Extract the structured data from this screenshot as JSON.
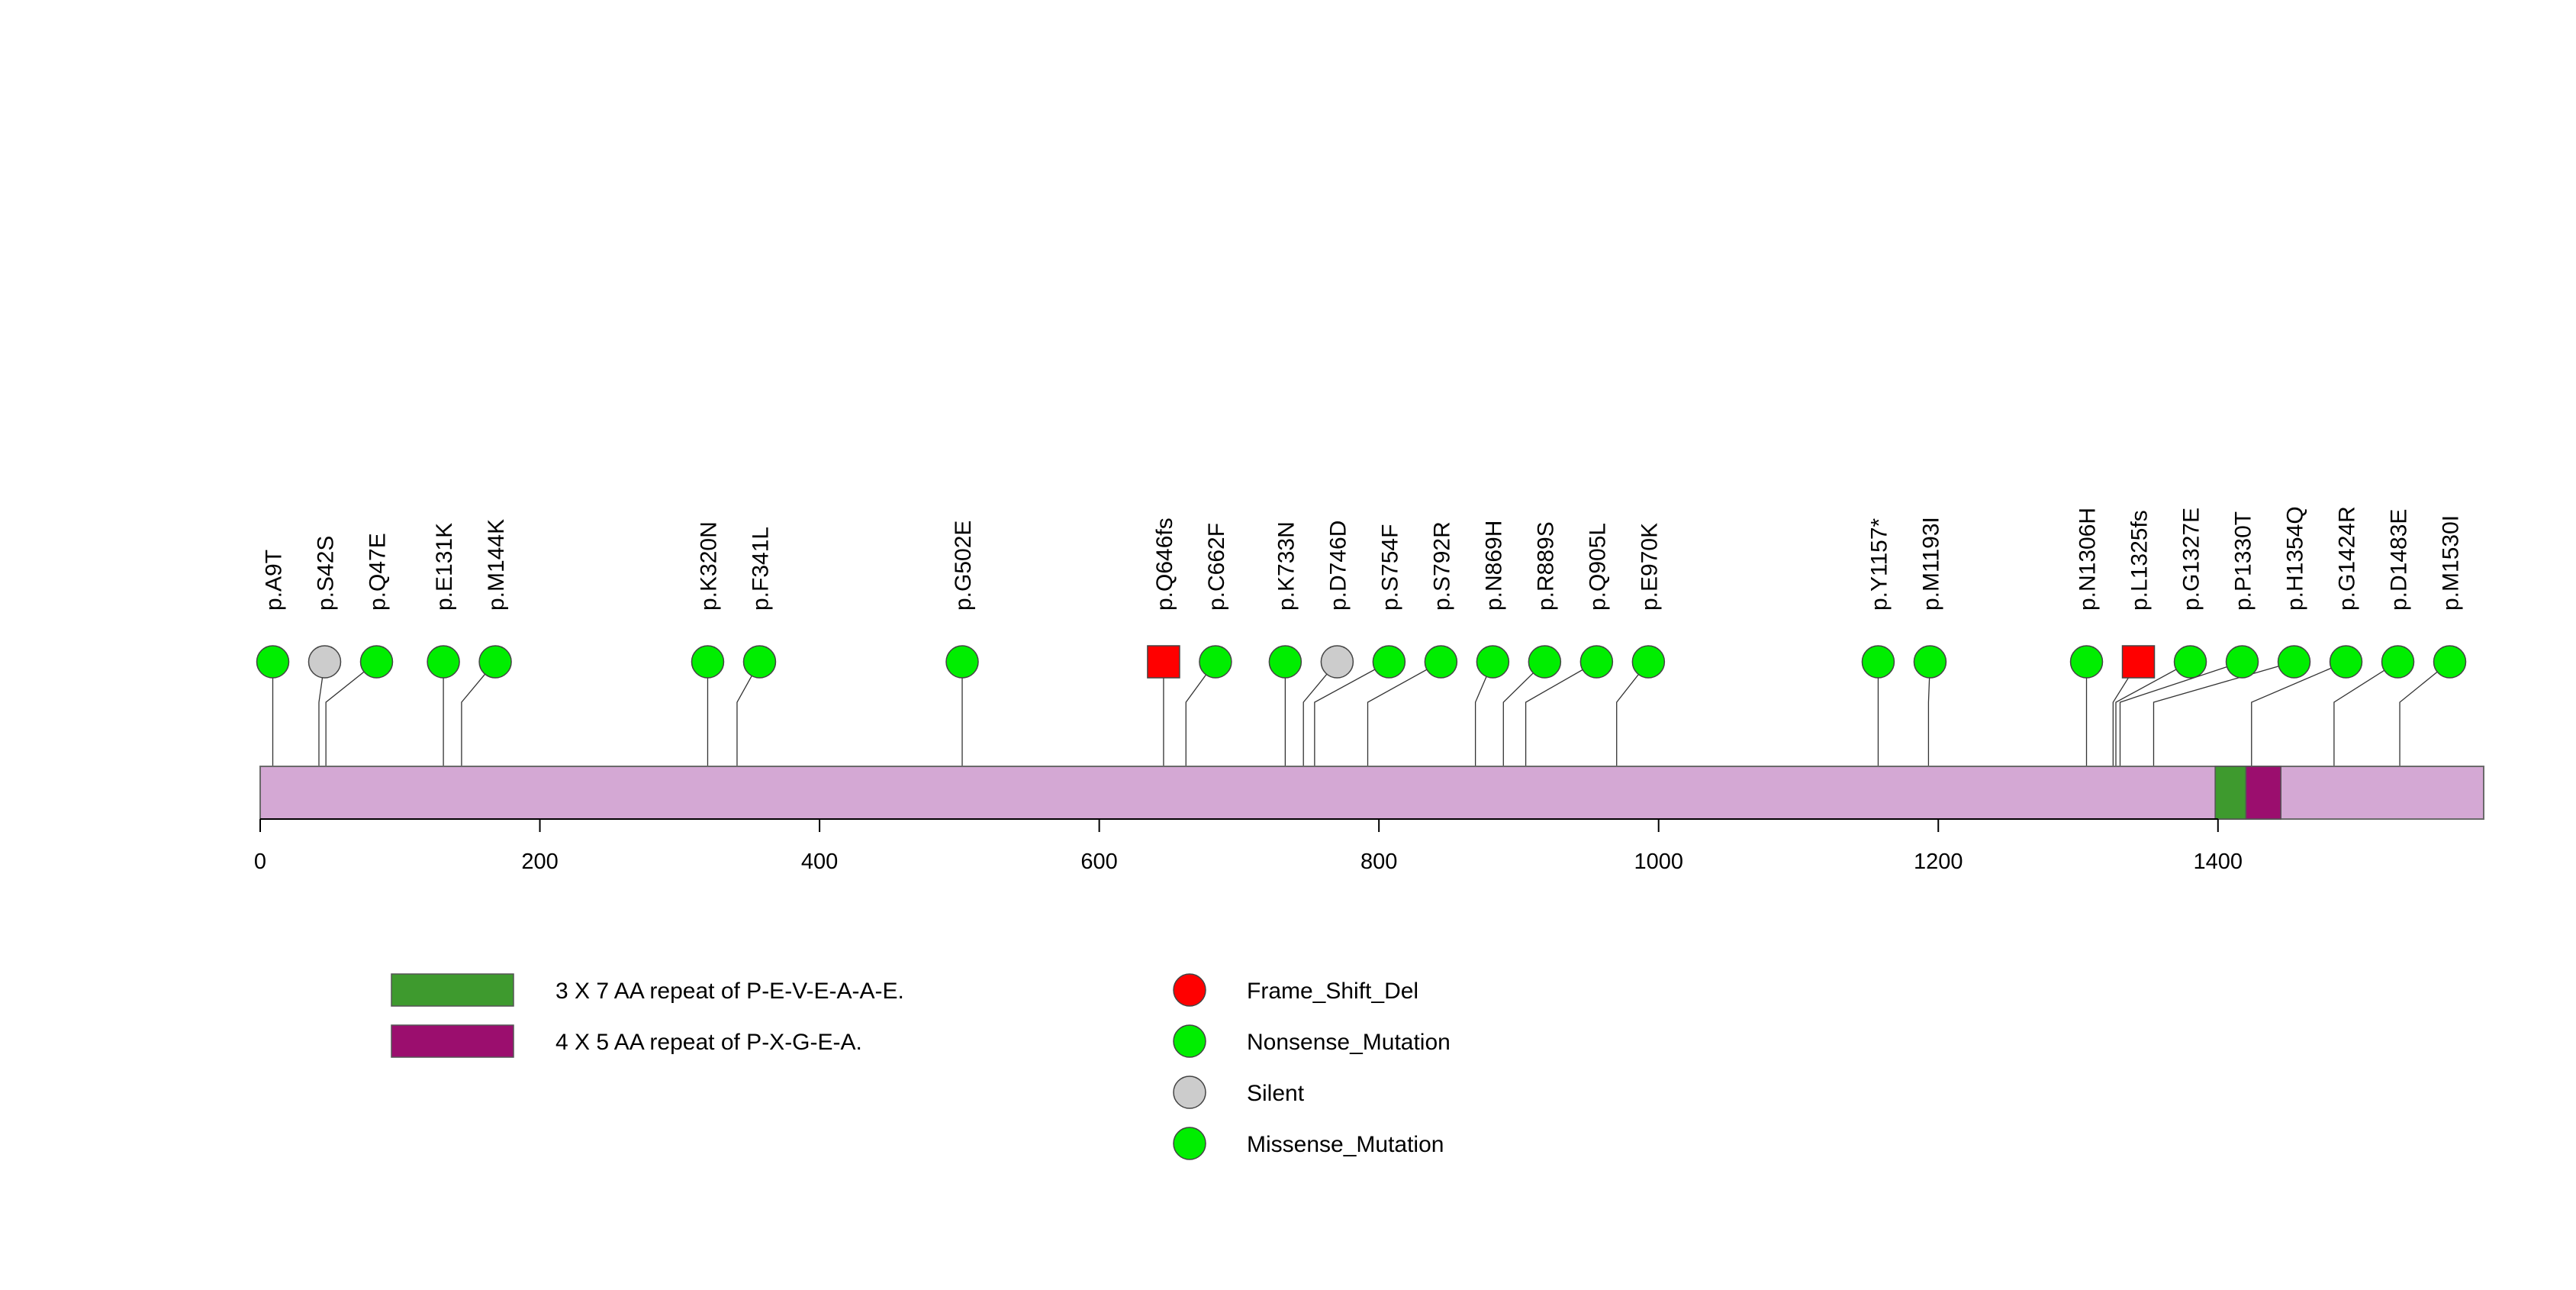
{
  "chart_data": {
    "type": "lollipop",
    "title": "",
    "xlabel": "",
    "ylabel": "",
    "protein_length": 1590,
    "xlim": [
      0,
      1590
    ],
    "x_ticks": [
      0,
      200,
      400,
      600,
      800,
      1000,
      1200,
      1400
    ],
    "x_tick_labels": [
      "0",
      "200",
      "400",
      "600",
      "800",
      "1000",
      "1200",
      "1400"
    ],
    "domains": [
      {
        "name": "3 X 7 AA repeat of P-E-V-E-A-A-E.",
        "start": 1398,
        "end": 1420,
        "color": "#3e9a2e"
      },
      {
        "name": "4 X 5 AA repeat of P-X-G-E-A.",
        "start": 1420,
        "end": 1445,
        "color": "#9b0e6e"
      }
    ],
    "mutation_types": [
      {
        "name": "Frame_Shift_Del",
        "color": "#ff0000"
      },
      {
        "name": "Nonsense_Mutation",
        "color": "#00ee00"
      },
      {
        "name": "Silent",
        "color": "#cccccc"
      },
      {
        "name": "Missense_Mutation",
        "color": "#00ee00"
      }
    ],
    "mutations": [
      {
        "label": "p.A9T",
        "position": 9,
        "type": "Missense_Mutation",
        "shape": "circle"
      },
      {
        "label": "p.S42S",
        "position": 42,
        "type": "Silent",
        "shape": "circle"
      },
      {
        "label": "p.Q47E",
        "position": 47,
        "type": "Missense_Mutation",
        "shape": "circle"
      },
      {
        "label": "p.E131K",
        "position": 131,
        "type": "Missense_Mutation",
        "shape": "circle"
      },
      {
        "label": "p.M144K",
        "position": 144,
        "type": "Missense_Mutation",
        "shape": "circle"
      },
      {
        "label": "p.K320N",
        "position": 320,
        "type": "Missense_Mutation",
        "shape": "circle"
      },
      {
        "label": "p.F341L",
        "position": 341,
        "type": "Missense_Mutation",
        "shape": "circle"
      },
      {
        "label": "p.G502E",
        "position": 502,
        "type": "Missense_Mutation",
        "shape": "circle"
      },
      {
        "label": "p.Q646fs",
        "position": 646,
        "type": "Frame_Shift_Del",
        "shape": "square"
      },
      {
        "label": "p.C662F",
        "position": 662,
        "type": "Missense_Mutation",
        "shape": "circle"
      },
      {
        "label": "p.K733N",
        "position": 733,
        "type": "Missense_Mutation",
        "shape": "circle"
      },
      {
        "label": "p.D746D",
        "position": 746,
        "type": "Silent",
        "shape": "circle"
      },
      {
        "label": "p.S754F",
        "position": 754,
        "type": "Missense_Mutation",
        "shape": "circle"
      },
      {
        "label": "p.S792R",
        "position": 792,
        "type": "Missense_Mutation",
        "shape": "circle"
      },
      {
        "label": "p.N869H",
        "position": 869,
        "type": "Missense_Mutation",
        "shape": "circle"
      },
      {
        "label": "p.R889S",
        "position": 889,
        "type": "Missense_Mutation",
        "shape": "circle"
      },
      {
        "label": "p.Q905L",
        "position": 905,
        "type": "Missense_Mutation",
        "shape": "circle"
      },
      {
        "label": "p.E970K",
        "position": 970,
        "type": "Missense_Mutation",
        "shape": "circle"
      },
      {
        "label": "p.Y1157*",
        "position": 1157,
        "type": "Nonsense_Mutation",
        "shape": "circle"
      },
      {
        "label": "p.M1193I",
        "position": 1193,
        "type": "Missense_Mutation",
        "shape": "circle"
      },
      {
        "label": "p.N1306H",
        "position": 1306,
        "type": "Missense_Mutation",
        "shape": "circle"
      },
      {
        "label": "p.L1325fs",
        "position": 1325,
        "type": "Frame_Shift_Del",
        "shape": "square"
      },
      {
        "label": "p.G1327E",
        "position": 1327,
        "type": "Missense_Mutation",
        "shape": "circle"
      },
      {
        "label": "p.P1330T",
        "position": 1330,
        "type": "Missense_Mutation",
        "shape": "circle"
      },
      {
        "label": "p.H1354Q",
        "position": 1354,
        "type": "Missense_Mutation",
        "shape": "circle"
      },
      {
        "label": "p.G1424R",
        "position": 1424,
        "type": "Missense_Mutation",
        "shape": "circle"
      },
      {
        "label": "p.D1483E",
        "position": 1483,
        "type": "Missense_Mutation",
        "shape": "circle"
      },
      {
        "label": "p.M1530I",
        "position": 1530,
        "type": "Missense_Mutation",
        "shape": "circle"
      }
    ]
  }
}
